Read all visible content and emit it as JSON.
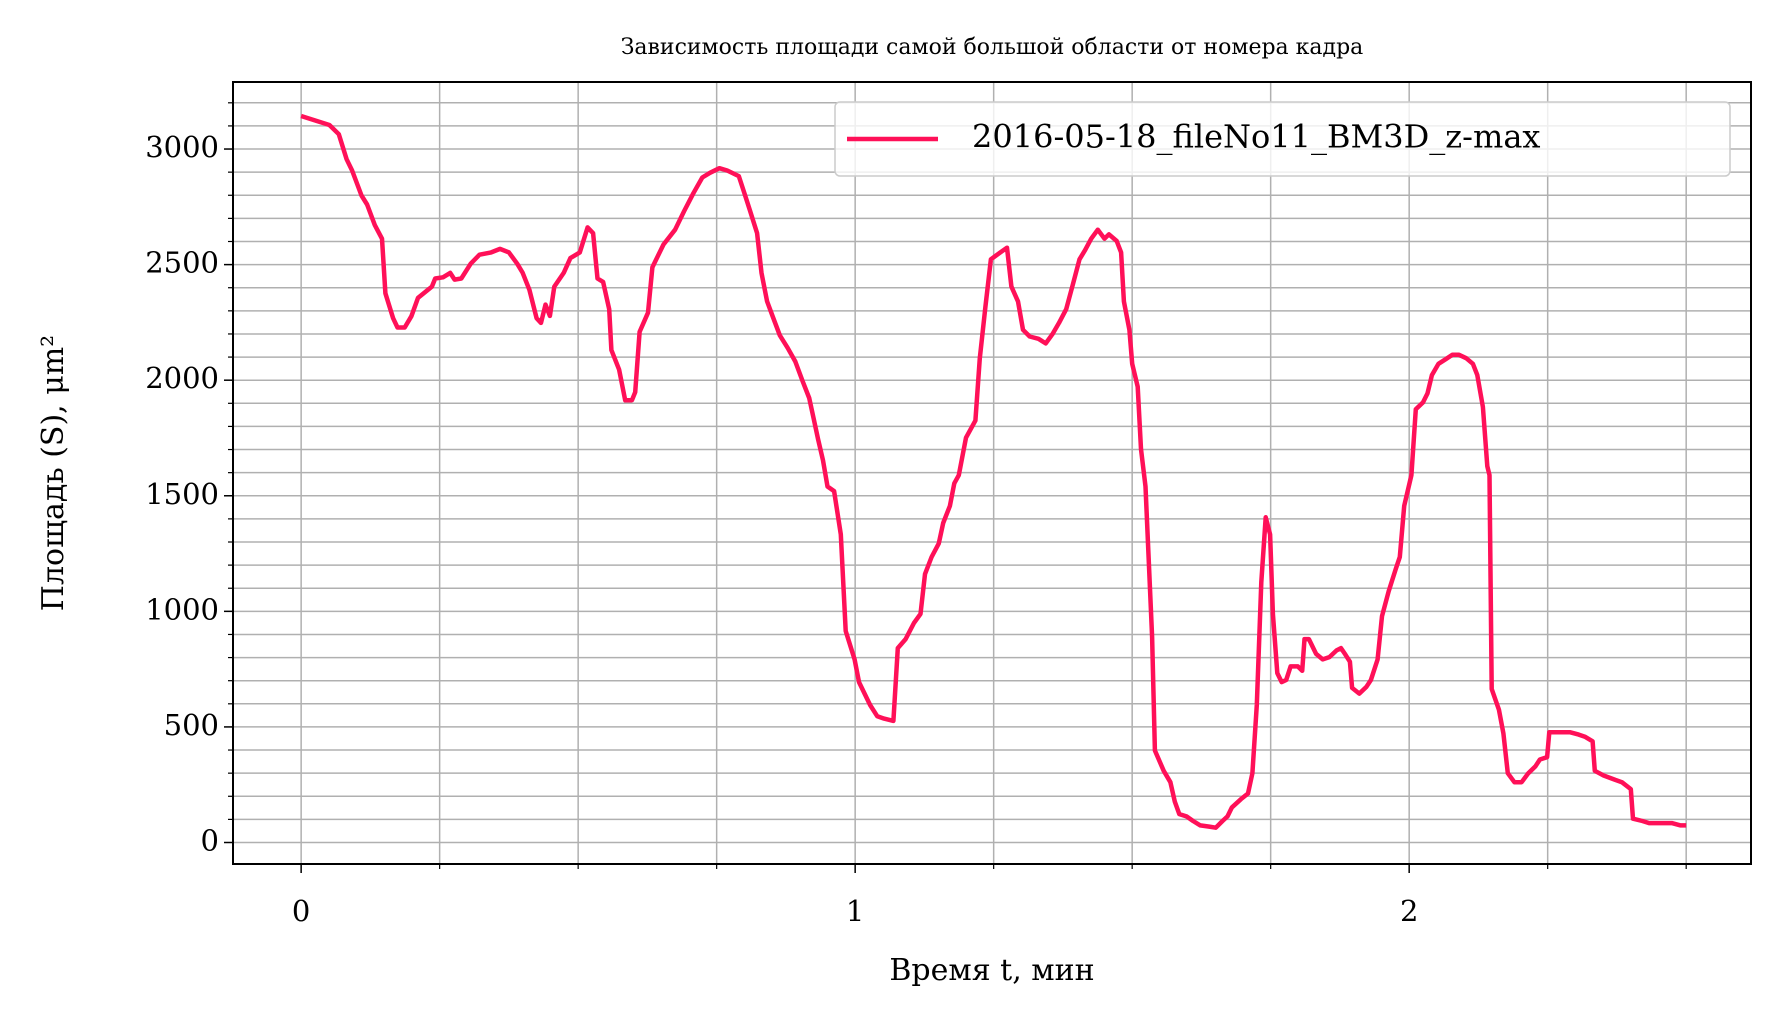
{
  "chart_data": {
    "type": "line",
    "title": "Зависимость площади самой большой области от номера кадра",
    "xlabel": "Время t, мин",
    "ylabel": "Площадь (S), μm²",
    "x": [
      0,
      0.051,
      0.068,
      0.082,
      0.092,
      0.109,
      0.119,
      0.133,
      0.146,
      0.152,
      0.166,
      0.174,
      0.187,
      0.199,
      0.211,
      0.236,
      0.242,
      0.256,
      0.269,
      0.277,
      0.289,
      0.306,
      0.322,
      0.343,
      0.359,
      0.375,
      0.39,
      0.4,
      0.412,
      0.425,
      0.433,
      0.441,
      0.449,
      0.457,
      0.474,
      0.486,
      0.503,
      0.517,
      0.527,
      0.535,
      0.545,
      0.556,
      0.56,
      0.574,
      0.585,
      0.597,
      0.603,
      0.611,
      0.626,
      0.634,
      0.654,
      0.675,
      0.691,
      0.708,
      0.724,
      0.738,
      0.755,
      0.769,
      0.79,
      0.8,
      0.81,
      0.823,
      0.831,
      0.841,
      0.851,
      0.864,
      0.878,
      0.892,
      0.905,
      0.917,
      0.925,
      0.933,
      0.942,
      0.95,
      0.962,
      0.974,
      0.983,
      0.999,
      1.007,
      1.027,
      1.04,
      1.052,
      1.069,
      1.077,
      1.091,
      1.106,
      1.118,
      1.126,
      1.138,
      1.151,
      1.159,
      1.171,
      1.179,
      1.187,
      1.2,
      1.217,
      1.225,
      1.235,
      1.245,
      1.262,
      1.274,
      1.282,
      1.294,
      1.303,
      1.315,
      1.331,
      1.344,
      1.356,
      1.368,
      1.381,
      1.393,
      1.405,
      1.415,
      1.426,
      1.438,
      1.45,
      1.458,
      1.472,
      1.48,
      1.485,
      1.495,
      1.5,
      1.51,
      1.516,
      1.524,
      1.536,
      1.541,
      1.557,
      1.569,
      1.577,
      1.585,
      1.598,
      1.61,
      1.623,
      1.639,
      1.651,
      1.663,
      1.672,
      1.68,
      1.696,
      1.709,
      1.717,
      1.725,
      1.733,
      1.741,
      1.749,
      1.754,
      1.762,
      1.77,
      1.778,
      1.786,
      1.799,
      1.807,
      1.811,
      1.819,
      1.832,
      1.844,
      1.856,
      1.869,
      1.877,
      1.885,
      1.893,
      1.897,
      1.91,
      1.923,
      1.931,
      1.943,
      1.951,
      1.963,
      1.976,
      1.983,
      1.991,
      2.004,
      2.012,
      2.025,
      2.033,
      2.041,
      2.053,
      2.066,
      2.078,
      2.09,
      2.103,
      2.115,
      2.123,
      2.133,
      2.141,
      2.145,
      2.149,
      2.162,
      2.17,
      2.178,
      2.19,
      2.203,
      2.215,
      2.228,
      2.236,
      2.249,
      2.253,
      2.269,
      2.29,
      2.306,
      2.318,
      2.331,
      2.335,
      2.351,
      2.372,
      2.384,
      2.4,
      2.404,
      2.421,
      2.433,
      2.454,
      2.474,
      2.49,
      2.5
    ],
    "series": [
      {
        "name": "2016-05-18_fileNo11_BM3D_z-max",
        "color": "#ff1058",
        "values": [
          3143,
          3104,
          3064,
          2956,
          2907,
          2799,
          2760,
          2671,
          2612,
          2376,
          2268,
          2228,
          2228,
          2277,
          2356,
          2405,
          2440,
          2445,
          2464,
          2435,
          2440,
          2504,
          2543,
          2553,
          2568,
          2553,
          2504,
          2464,
          2391,
          2268,
          2248,
          2327,
          2278,
          2405,
          2464,
          2528,
          2553,
          2661,
          2636,
          2440,
          2425,
          2307,
          2130,
          2046,
          1913,
          1913,
          1948,
          2209,
          2292,
          2489,
          2587,
          2651,
          2730,
          2809,
          2877,
          2897,
          2917,
          2907,
          2883,
          2809,
          2735,
          2636,
          2464,
          2341,
          2277,
          2194,
          2140,
          2081,
          1997,
          1923,
          1835,
          1746,
          1653,
          1540,
          1520,
          1333,
          915,
          792,
          694,
          595,
          546,
          536,
          526,
          841,
          880,
          949,
          989,
          1161,
          1235,
          1294,
          1382,
          1456,
          1554,
          1589,
          1751,
          1825,
          2095,
          2317,
          2523,
          2553,
          2573,
          2405,
          2341,
          2218,
          2189,
          2179,
          2159,
          2199,
          2248,
          2307,
          2415,
          2523,
          2563,
          2612,
          2651,
          2612,
          2631,
          2602,
          2553,
          2341,
          2218,
          2071,
          1972,
          1702,
          1540,
          890,
          398,
          310,
          261,
          177,
          123,
          113,
          93,
          74,
          69,
          64,
          93,
          113,
          152,
          187,
          212,
          300,
          595,
          1126,
          1407,
          1333,
          989,
          733,
          694,
          703,
          762,
          762,
          743,
          880,
          880,
          816,
          792,
          802,
          831,
          841,
          812,
          782,
          669,
          644,
          674,
          703,
          792,
          979,
          1087,
          1185,
          1235,
          1456,
          1589,
          1874,
          1904,
          1943,
          2022,
          2071,
          2091,
          2110,
          2110,
          2095,
          2071,
          2022,
          1884,
          1628,
          1589,
          664,
          575,
          472,
          300,
          261,
          261,
          300,
          330,
          359,
          369,
          477,
          477,
          477,
          467,
          457,
          438,
          310,
          290,
          271,
          261,
          231,
          103,
          93,
          84,
          84,
          84,
          74,
          74
        ]
      }
    ],
    "xlim": [
      -0.123,
      2.617
    ],
    "ylim": [
      -93,
      3290
    ],
    "xticks": [
      0,
      1,
      2
    ],
    "yticks": [
      0,
      500,
      1000,
      1500,
      2000,
      2500,
      3000
    ],
    "minor_xticks": [
      0.25,
      0.5,
      0.75,
      1.25,
      1.5,
      1.75,
      2.25,
      2.5
    ],
    "minor_yticks": [
      100,
      200,
      300,
      400,
      600,
      700,
      800,
      900,
      1100,
      1200,
      1300,
      1400,
      1600,
      1700,
      1800,
      1900,
      2100,
      2200,
      2300,
      2400,
      2600,
      2700,
      2800,
      2900,
      3100,
      3200
    ],
    "grid": true,
    "legend": "upper right"
  }
}
